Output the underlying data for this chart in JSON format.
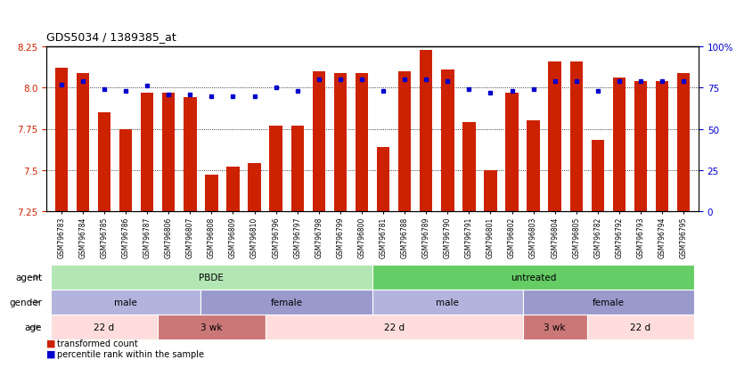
{
  "title": "GDS5034 / 1389385_at",
  "samples": [
    "GSM796783",
    "GSM796784",
    "GSM796785",
    "GSM796786",
    "GSM796787",
    "GSM796806",
    "GSM796807",
    "GSM796808",
    "GSM796809",
    "GSM796810",
    "GSM796796",
    "GSM796797",
    "GSM796798",
    "GSM796799",
    "GSM796800",
    "GSM796781",
    "GSM796788",
    "GSM796789",
    "GSM796790",
    "GSM796791",
    "GSM796801",
    "GSM796802",
    "GSM796803",
    "GSM796804",
    "GSM796805",
    "GSM796782",
    "GSM796792",
    "GSM796793",
    "GSM796794",
    "GSM796795"
  ],
  "bar_values": [
    8.12,
    8.09,
    7.85,
    7.75,
    7.97,
    7.97,
    7.94,
    7.47,
    7.52,
    7.54,
    7.77,
    7.77,
    8.1,
    8.09,
    8.09,
    7.64,
    8.1,
    8.23,
    8.11,
    7.79,
    7.5,
    7.97,
    7.8,
    8.16,
    8.16,
    7.68,
    8.06,
    8.04,
    8.04,
    8.09
  ],
  "percentile_values": [
    77,
    79,
    74,
    73,
    76,
    71,
    71,
    70,
    70,
    70,
    75,
    73,
    80,
    80,
    80,
    73,
    80,
    80,
    79,
    74,
    72,
    73,
    74,
    79,
    79,
    73,
    79,
    79,
    79,
    79
  ],
  "ylim_left": [
    7.25,
    8.25
  ],
  "ylim_right": [
    0,
    100
  ],
  "yticks_left": [
    7.25,
    7.5,
    7.75,
    8.0,
    8.25
  ],
  "yticks_right": [
    0,
    25,
    50,
    75,
    100
  ],
  "bar_color": "#cc2200",
  "dot_color": "#0000cc",
  "agent_groups": [
    {
      "label": "PBDE",
      "start": 0,
      "end": 15,
      "color": "#b3e6b3"
    },
    {
      "label": "untreated",
      "start": 15,
      "end": 30,
      "color": "#66cc66"
    }
  ],
  "gender_groups": [
    {
      "label": "male",
      "start": 0,
      "end": 7,
      "color": "#b3b3dd"
    },
    {
      "label": "female",
      "start": 7,
      "end": 15,
      "color": "#9999cc"
    },
    {
      "label": "male",
      "start": 15,
      "end": 22,
      "color": "#b3b3dd"
    },
    {
      "label": "female",
      "start": 22,
      "end": 30,
      "color": "#9999cc"
    }
  ],
  "age_groups": [
    {
      "label": "22 d",
      "start": 0,
      "end": 5,
      "color": "#ffdddd"
    },
    {
      "label": "3 wk",
      "start": 5,
      "end": 10,
      "color": "#cc7777"
    },
    {
      "label": "22 d",
      "start": 10,
      "end": 22,
      "color": "#ffdddd"
    },
    {
      "label": "3 wk",
      "start": 22,
      "end": 25,
      "color": "#cc7777"
    },
    {
      "label": "22 d",
      "start": 25,
      "end": 30,
      "color": "#ffdddd"
    }
  ]
}
